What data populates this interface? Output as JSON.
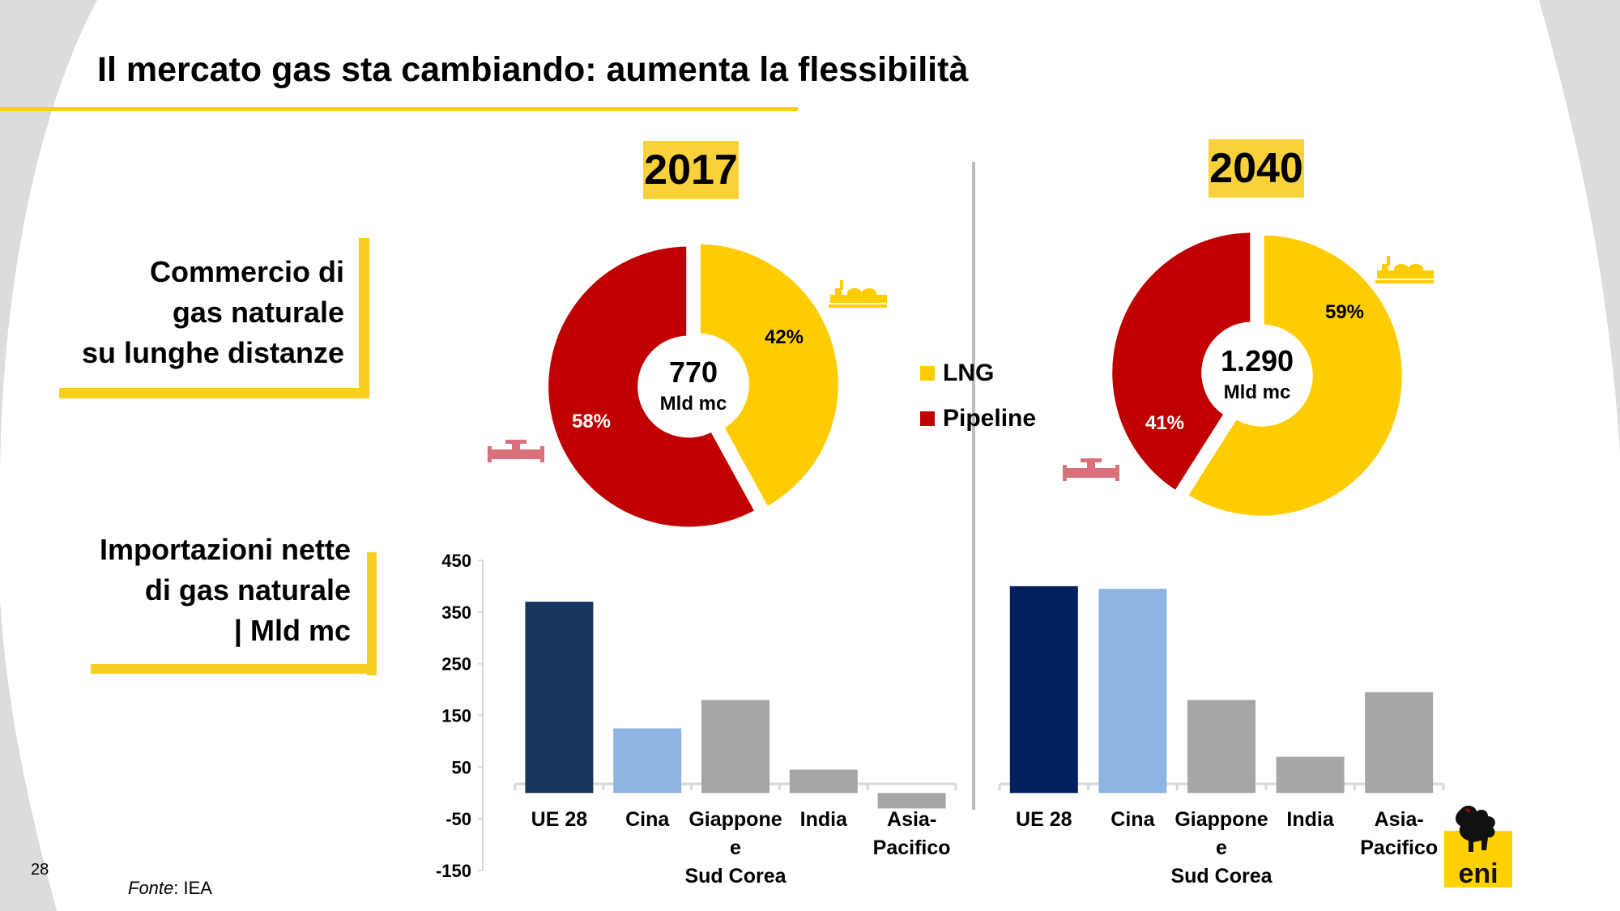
{
  "page": {
    "title": "Il mercato gas sta cambiando: aumenta la flessibilità",
    "number": "28",
    "source_label": "Fonte",
    "source_value": ": IEA",
    "accent_color": "#f7cf1f"
  },
  "sections": {
    "trade_label_lines": [
      "Commercio di",
      "gas naturale",
      "su lunghe distanze"
    ],
    "imports_label_lines": [
      "Importazioni nette",
      "di gas naturale",
      "| Mld mc"
    ]
  },
  "legend": [
    {
      "label": "LNG",
      "color": "#ffcc00"
    },
    {
      "label": "Pipeline",
      "color": "#c00000"
    }
  ],
  "icons": [
    "lng-ship-icon",
    "pipeline-icon",
    "eni-dog-logo-icon"
  ],
  "logo_text": "eni",
  "chart_data": [
    {
      "type": "pie",
      "variant": "donut",
      "title": "2017",
      "center_value": "770",
      "center_unit": "Mld mc",
      "slices": [
        {
          "label": "LNG",
          "value": 42,
          "display": "42%",
          "color": "#ffcc00"
        },
        {
          "label": "Pipeline",
          "value": 58,
          "display": "58%",
          "color": "#c00000"
        }
      ]
    },
    {
      "type": "pie",
      "variant": "donut",
      "title": "2040",
      "center_value": "1.290",
      "center_unit": "Mld mc",
      "slices": [
        {
          "label": "LNG",
          "value": 59,
          "display": "59%",
          "color": "#ffcc00"
        },
        {
          "label": "Pipeline",
          "value": 41,
          "display": "41%",
          "color": "#c00000"
        }
      ]
    },
    {
      "type": "bar",
      "year": "2017",
      "categories": [
        {
          "lines": [
            "UE 28"
          ]
        },
        {
          "lines": [
            "Cina"
          ]
        },
        {
          "lines": [
            "Giappone",
            "e",
            "Sud Corea"
          ]
        },
        {
          "lines": [
            "India"
          ]
        },
        {
          "lines": [
            "Asia-",
            "Pacifico"
          ]
        }
      ],
      "values": [
        370,
        125,
        180,
        45,
        -30
      ],
      "colors": [
        "#17375e",
        "#8eb4e3",
        "#a6a6a6",
        "#a6a6a6",
        "#a6a6a6"
      ],
      "yticks": [
        "450",
        "350",
        "250",
        "150",
        "50",
        "-50",
        "-150"
      ],
      "ylim": [
        -150,
        450
      ]
    },
    {
      "type": "bar",
      "year": "2040",
      "categories": [
        {
          "lines": [
            "UE 28"
          ]
        },
        {
          "lines": [
            "Cina"
          ]
        },
        {
          "lines": [
            "Giappone",
            "e",
            "Sud Corea"
          ]
        },
        {
          "lines": [
            "India"
          ]
        },
        {
          "lines": [
            "Asia-",
            "Pacifico"
          ]
        }
      ],
      "values": [
        400,
        395,
        180,
        70,
        195
      ],
      "colors": [
        "#002060",
        "#8eb4e3",
        "#a6a6a6",
        "#a6a6a6",
        "#a6a6a6"
      ],
      "ylim": [
        -150,
        450
      ]
    }
  ]
}
